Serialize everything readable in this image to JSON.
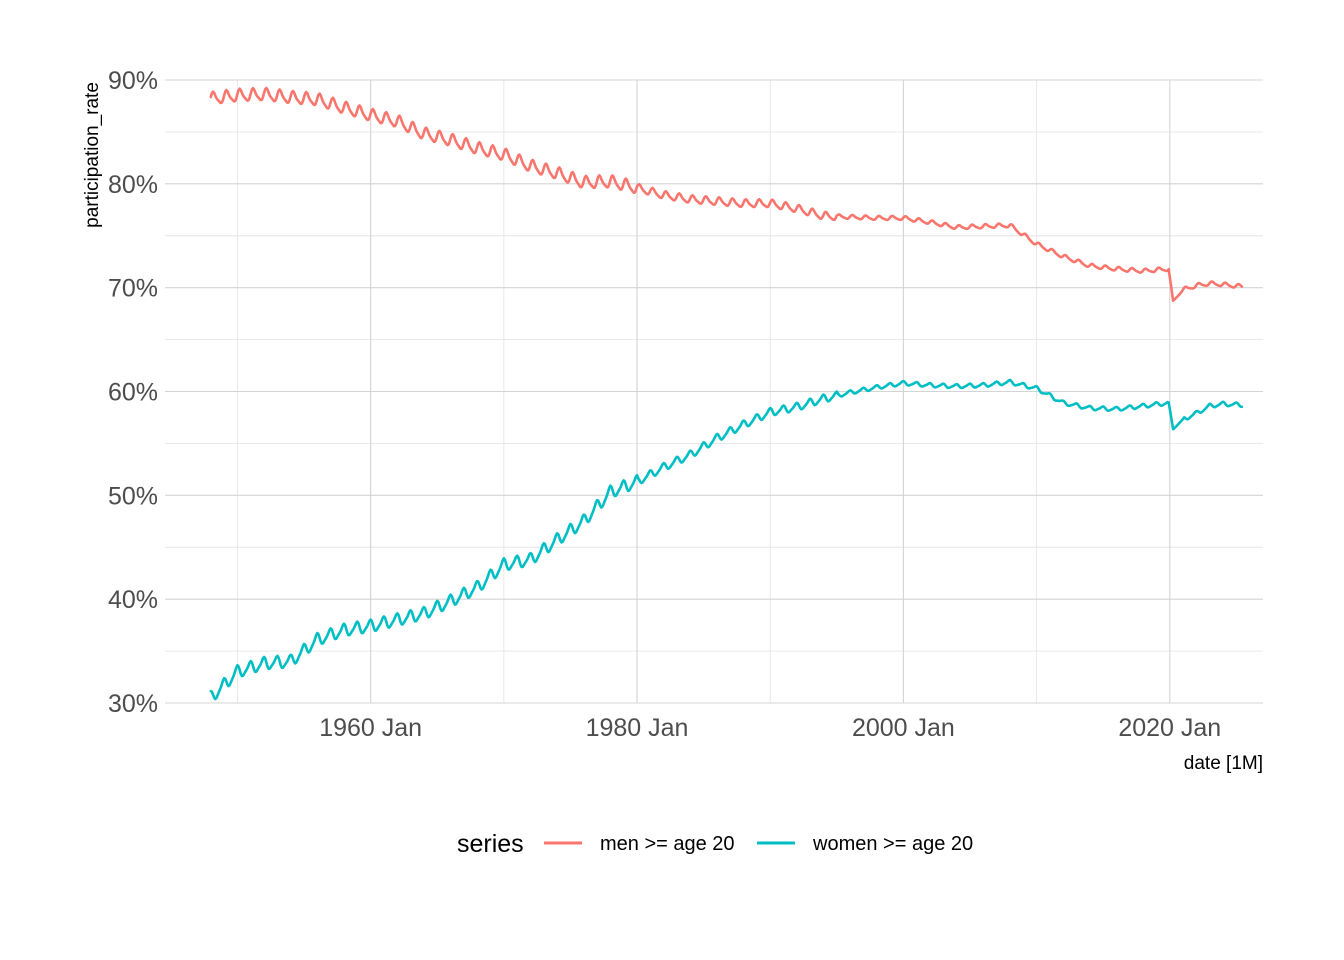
{
  "chart_data": {
    "type": "line",
    "xlabel": "date [1M]",
    "ylabel": "participation_rate",
    "x_ticks": [
      "1960 Jan",
      "1980 Jan",
      "2000 Jan",
      "2020 Jan"
    ],
    "x_tick_years": [
      1960,
      1980,
      2000,
      2020
    ],
    "x_minor_years": [
      1950,
      1970,
      1990,
      2010
    ],
    "xlim": [
      "1948-01",
      "2025-12"
    ],
    "y_ticks": [
      "30%",
      "40%",
      "50%",
      "60%",
      "70%",
      "80%",
      "90%"
    ],
    "y_tick_values": [
      30,
      40,
      50,
      60,
      70,
      80,
      90
    ],
    "ylim": [
      30,
      90
    ],
    "grid": true,
    "legend": {
      "title": "series",
      "position": "bottom",
      "entries": [
        "men >= age 20",
        "women >= age 20"
      ]
    },
    "series": [
      {
        "name": "men >= age 20",
        "color": "#F8766D",
        "x": [
          "1948",
          "1950",
          "1952",
          "1954",
          "1956",
          "1958",
          "1960",
          "1962",
          "1964",
          "1966",
          "1968",
          "1970",
          "1972",
          "1974",
          "1976",
          "1978",
          "1980",
          "1982",
          "1984",
          "1986",
          "1988",
          "1990",
          "1992",
          "1994",
          "1996",
          "1998",
          "2000",
          "2002",
          "2004",
          "2006",
          "2008",
          "2010",
          "2012",
          "2014",
          "2016",
          "2018",
          "2019-12",
          "2020-04",
          "2021",
          "2022",
          "2023",
          "2024",
          "2025-06"
        ],
        "values": [
          88.2,
          88.5,
          88.6,
          88.3,
          88.1,
          87.3,
          86.6,
          86.0,
          84.8,
          84.2,
          83.4,
          82.8,
          81.7,
          81.0,
          80.1,
          80.2,
          79.6,
          78.9,
          78.5,
          78.3,
          78.1,
          78.1,
          77.6,
          76.9,
          76.8,
          76.7,
          76.7,
          76.3,
          75.8,
          75.9,
          76.0,
          74.2,
          73.0,
          72.1,
          71.8,
          71.6,
          71.8,
          68.7,
          69.8,
          70.2,
          70.4,
          70.3,
          70.1
        ]
      },
      {
        "name": "women >= age 20",
        "color": "#00BFC4",
        "x": [
          "1948",
          "1950",
          "1952",
          "1954",
          "1956",
          "1958",
          "1960",
          "1962",
          "1964",
          "1966",
          "1968",
          "1970",
          "1972",
          "1974",
          "1976",
          "1978",
          "1980",
          "1982",
          "1984",
          "1986",
          "1988",
          "1990",
          "1992",
          "1994",
          "1996",
          "1998",
          "2000",
          "2002",
          "2004",
          "2006",
          "2008",
          "2010",
          "2012",
          "2014",
          "2016",
          "2018",
          "2019-12",
          "2020-04",
          "2021",
          "2022",
          "2023",
          "2024",
          "2025-06"
        ],
        "values": [
          30.5,
          33.0,
          33.8,
          34.0,
          36.1,
          37.0,
          37.4,
          38.0,
          38.6,
          39.8,
          41.1,
          43.3,
          43.8,
          45.7,
          47.5,
          50.3,
          51.3,
          52.7,
          53.9,
          55.5,
          56.8,
          58.0,
          58.5,
          59.3,
          59.9,
          60.4,
          60.8,
          60.6,
          60.5,
          60.6,
          60.9,
          60.3,
          58.9,
          58.4,
          58.3,
          58.6,
          58.9,
          56.4,
          57.3,
          57.9,
          58.6,
          58.8,
          58.7
        ]
      }
    ]
  }
}
